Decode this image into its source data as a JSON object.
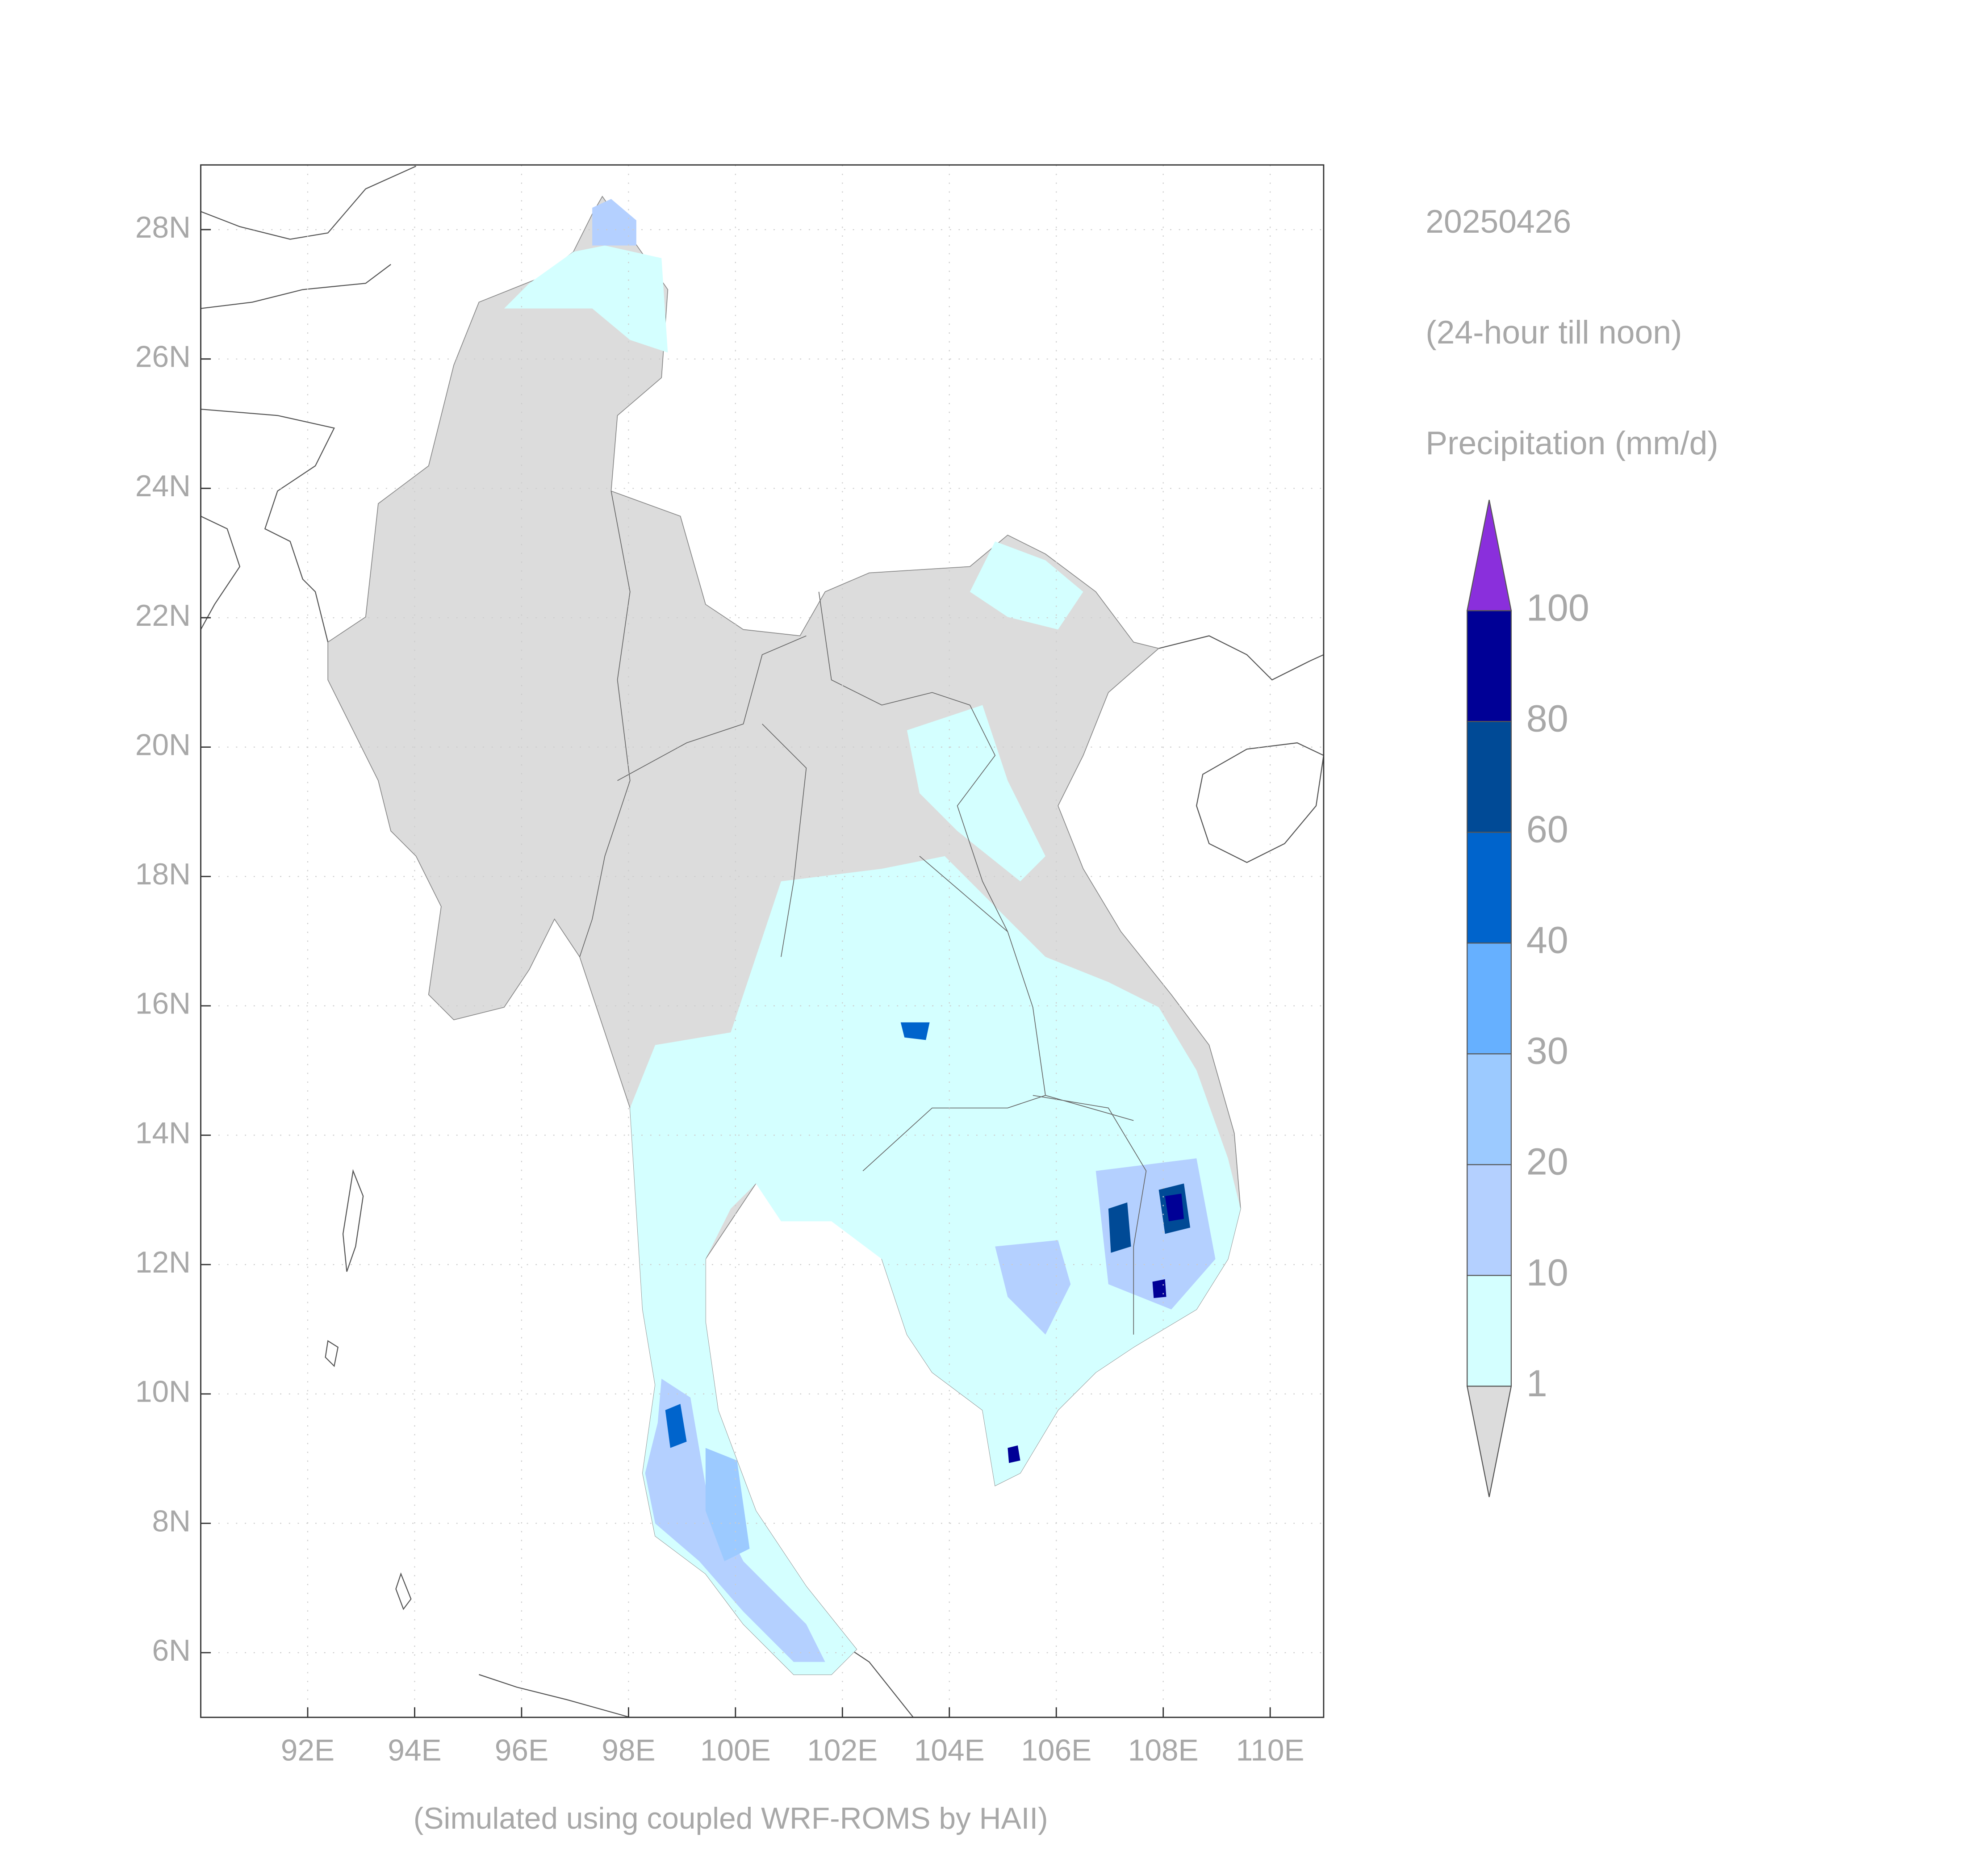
{
  "map": {
    "type": "map",
    "date": "20250426",
    "period": "(24-hour till noon)",
    "variable": "Precipitation (mm/d)",
    "credit": "(Simulated using coupled WRF-ROMS by HAII)",
    "xlim": [
      90,
      111
    ],
    "ylim": [
      5,
      29
    ],
    "grid": true,
    "xticks": [
      {
        "value": 92,
        "label": "92E"
      },
      {
        "value": 94,
        "label": "94E"
      },
      {
        "value": 96,
        "label": "96E"
      },
      {
        "value": 98,
        "label": "98E"
      },
      {
        "value": 100,
        "label": "100E"
      },
      {
        "value": 102,
        "label": "102E"
      },
      {
        "value": 104,
        "label": "104E"
      },
      {
        "value": 106,
        "label": "106E"
      },
      {
        "value": 108,
        "label": "108E"
      },
      {
        "value": 110,
        "label": "110E"
      }
    ],
    "yticks": [
      {
        "value": 6,
        "label": "6N"
      },
      {
        "value": 8,
        "label": "8N"
      },
      {
        "value": 10,
        "label": "10N"
      },
      {
        "value": 12,
        "label": "12N"
      },
      {
        "value": 14,
        "label": "14N"
      },
      {
        "value": 16,
        "label": "16N"
      },
      {
        "value": 18,
        "label": "18N"
      },
      {
        "value": 20,
        "label": "20N"
      },
      {
        "value": 22,
        "label": "22N"
      },
      {
        "value": 24,
        "label": "24N"
      },
      {
        "value": 26,
        "label": "26N"
      },
      {
        "value": 28,
        "label": "28N"
      }
    ],
    "colorbar": {
      "levels": [
        1,
        10,
        20,
        30,
        40,
        60,
        80,
        100
      ],
      "colors": [
        "#d4ffff",
        "#b4d0ff",
        "#9ccaff",
        "#66b0ff",
        "#0064cc",
        "#004a96",
        "#000096"
      ],
      "under_color": "#dcdcdc",
      "over_color": "#8a2fdc"
    }
  }
}
